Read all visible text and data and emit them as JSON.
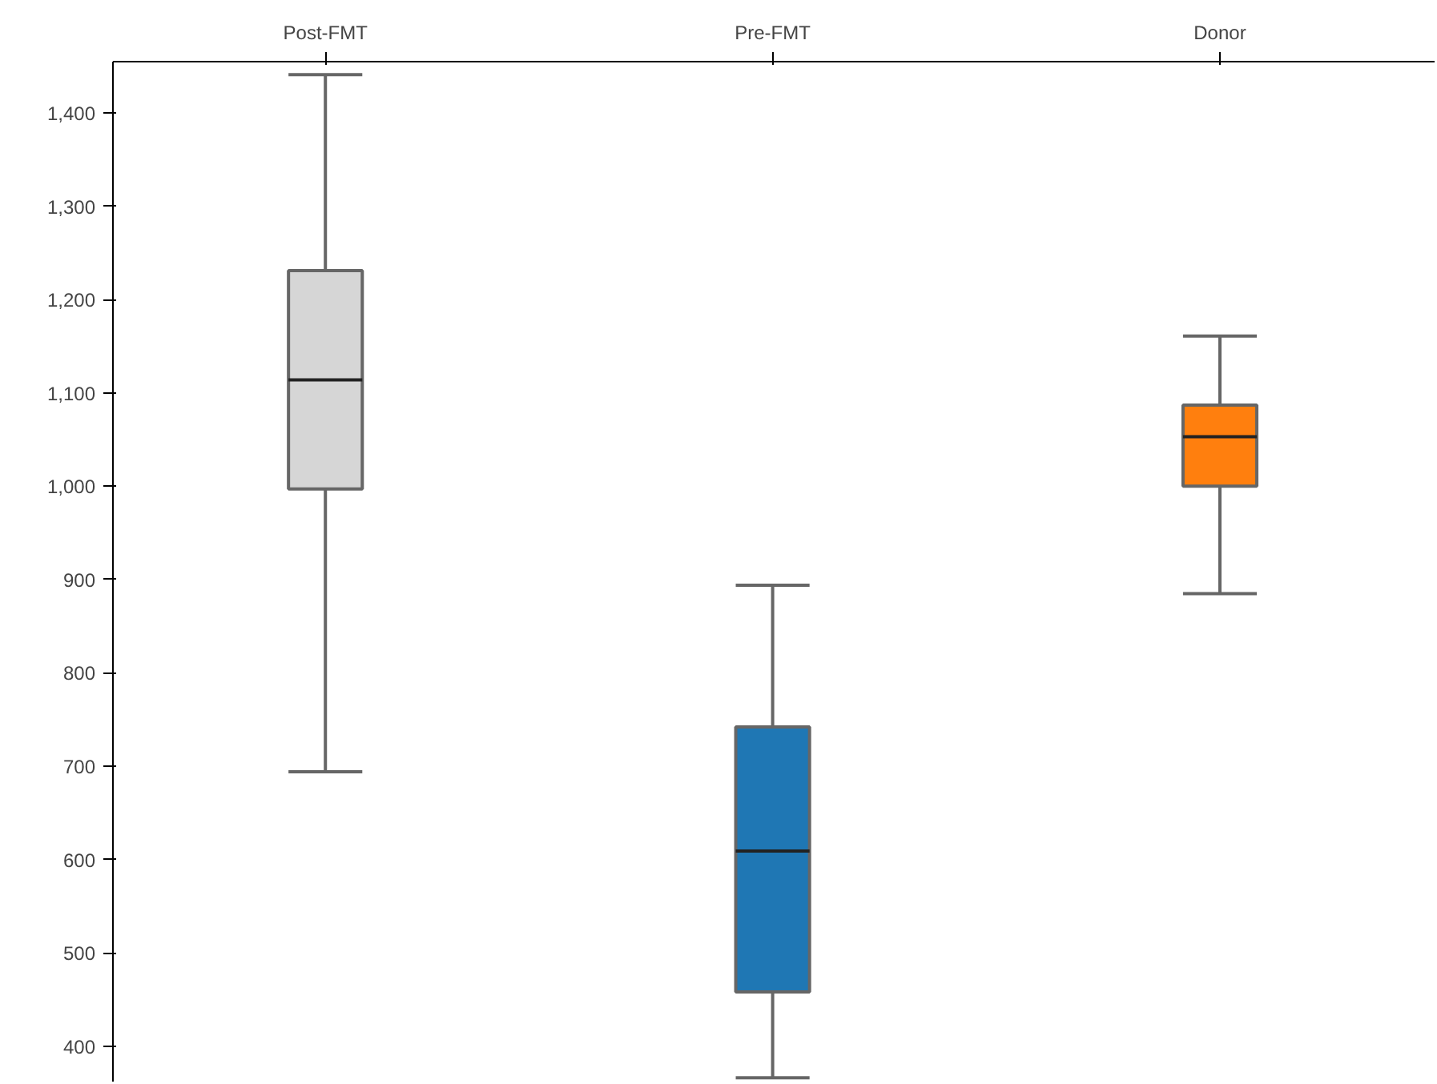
{
  "chart_data": {
    "type": "box",
    "categories": [
      "Post-FMT",
      "Pre-FMT",
      "Donor"
    ],
    "colors": [
      "#d6d6d6",
      "#1f77b4",
      "#ff7f0e"
    ],
    "boxes": [
      {
        "low": 694,
        "q1": 997,
        "median": 1114,
        "q3": 1231,
        "high": 1441
      },
      {
        "low": 366,
        "q1": 458,
        "median": 609,
        "q3": 742,
        "high": 894
      },
      {
        "low": 885,
        "q1": 1000,
        "median": 1053,
        "q3": 1087,
        "high": 1161
      }
    ],
    "ylim": [
      362,
      1455
    ],
    "yticks": [
      {
        "value": 400,
        "label": "400"
      },
      {
        "value": 500,
        "label": "500"
      },
      {
        "value": 600,
        "label": "600"
      },
      {
        "value": 700,
        "label": "700"
      },
      {
        "value": 800,
        "label": "800"
      },
      {
        "value": 900,
        "label": "900"
      },
      {
        "value": 1000,
        "label": "1,000"
      },
      {
        "value": 1100,
        "label": "1,100"
      },
      {
        "value": 1200,
        "label": "1,200"
      },
      {
        "value": 1300,
        "label": "1,300"
      },
      {
        "value": 1400,
        "label": "1,400"
      }
    ],
    "grid": false
  }
}
